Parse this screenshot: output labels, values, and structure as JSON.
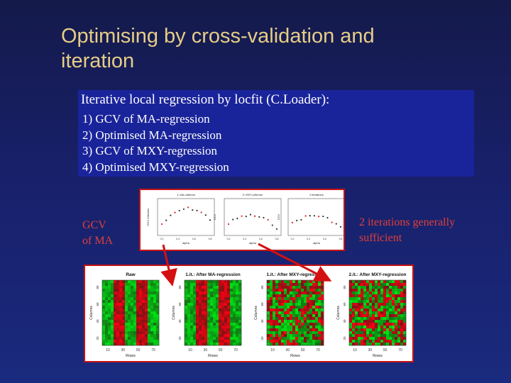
{
  "slide": {
    "title_line1": "Optimising by cross-validation and",
    "title_line2": "iteration"
  },
  "info_box": {
    "heading": "Iterative local regression by locfit (C.Loader):",
    "items": [
      "1) GCV of  MA-regression",
      "2) Optimised MA-regression",
      "3) GCV of MXY-regression",
      "4) Optimised MXY-regression"
    ]
  },
  "labels": {
    "gcv_line1": "GCV",
    "gcv_line2": "of MA",
    "iter_line1": "2 iterations generally",
    "iter_line2": "sufficient"
  },
  "gcv_plots": [
    {
      "title": "1: MA-criterion",
      "xlabel": "alpha",
      "ylabel": "GCV Criterion"
    },
    {
      "title": "2: MXY-criterion",
      "xlabel": "alpha",
      "ylabel": "GCV"
    },
    {
      "title": "2 iterations",
      "xlabel": "alpha",
      "ylabel": "GCV"
    }
  ],
  "gcv_xticks": [
    "0.2",
    "0.4",
    "0.6",
    "0.8"
  ],
  "heatmaps": [
    {
      "title": "Raw",
      "ylabel": "Columns",
      "xlabel": "Rows",
      "xticks": [
        "10",
        "30",
        "50",
        "70"
      ],
      "yticks": [
        "20",
        "40",
        "60",
        "80"
      ]
    },
    {
      "title": "1.it.: After MA-regression",
      "ylabel": "Columns",
      "xlabel": "Rows",
      "xticks": [
        "10",
        "30",
        "50",
        "70"
      ],
      "yticks": [
        "20",
        "40",
        "60",
        "80"
      ]
    },
    {
      "title": "1.it.: After MXY-regression",
      "ylabel": "Columns",
      "xlabel": "Rows",
      "xticks": [
        "10",
        "30",
        "50",
        "70"
      ],
      "yticks": [
        "20",
        "40",
        "60",
        "80"
      ]
    },
    {
      "title": "2.it.: After MXY-regression",
      "ylabel": "Columns",
      "xlabel": "Rows",
      "xticks": [
        "10",
        "30",
        "50",
        "70"
      ],
      "yticks": [
        "20",
        "40",
        "60",
        "80"
      ]
    }
  ],
  "colors": {
    "title": "#e6cd86",
    "label_red": "#e04038",
    "box_bg": "#1a249a",
    "panel_border": "#c71212",
    "heat_red": "#d81010",
    "heat_green": "#22b020"
  }
}
